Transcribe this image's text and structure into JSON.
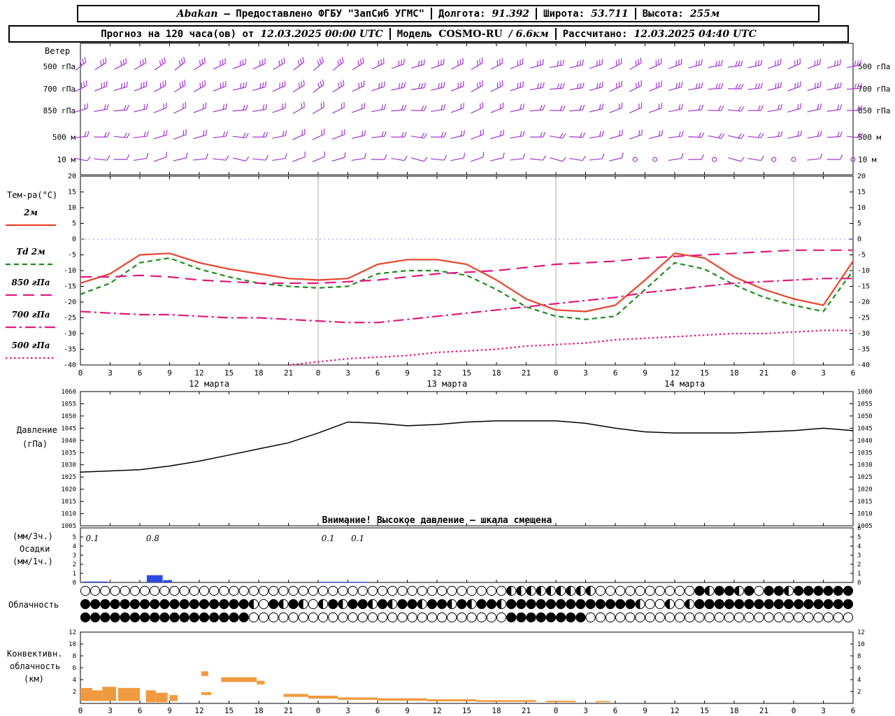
{
  "header1": {
    "station": "Abakan",
    "provider": "— Предоставлено ФГБУ \"ЗапСиб УГМС\"",
    "lon_label": "Долгота:",
    "lon": "91.392",
    "lat_label": "Широта:",
    "lat": "53.711",
    "alt_label": "Высота:",
    "alt": "255м"
  },
  "header2": {
    "forecast_label": "Прогноз на 120 часа(ов) от",
    "forecast_time": "12.03.2025 00:00 UTC",
    "model_label": "Модель",
    "model_name": "COSMO-RU",
    "model_res": "/ 6.6км",
    "calc_label": "Рассчитано:",
    "calc_time": "12.03.2025 04:40 UTC"
  },
  "panels": {
    "wind": {
      "title": "Ветер"
    },
    "temperature": {
      "title": "Тем-ра(°C)"
    },
    "pressure": {
      "title_line1": "Давление",
      "title_line2": "(гПа)"
    },
    "precipitation": {
      "label_line1": "(мм/3ч.)",
      "label_line2": "Осадки",
      "label_line3": "(мм/1ч.)"
    },
    "cloudiness": {
      "title": "Облачность"
    },
    "convective": {
      "label_line1": "Конвективн.",
      "label_line2": "облачность",
      "label_line3": "(км)"
    }
  },
  "x_axis": {
    "hour_labels": [
      "0",
      "3",
      "6",
      "9",
      "12",
      "15",
      "18",
      "21",
      "0",
      "3",
      "6",
      "9",
      "12",
      "15",
      "18",
      "21",
      "0",
      "3",
      "6",
      "9",
      "12",
      "15",
      "18",
      "21",
      "0",
      "3",
      "6"
    ],
    "date_labels": [
      "12 марта",
      "13 марта",
      "14 марта"
    ]
  },
  "chart_data": [
    {
      "type": "line",
      "id": "temperature",
      "title": "Тем-ра(°C)",
      "ylim": [
        -40,
        20
      ],
      "ytick": 5,
      "x_hours": [
        0,
        3,
        6,
        9,
        12,
        15,
        18,
        21,
        24,
        27,
        30,
        33,
        36,
        39,
        42,
        45,
        48,
        51,
        54,
        57,
        60,
        63,
        66,
        69,
        72,
        75,
        78
      ],
      "series": [
        {
          "name": "2м",
          "color": "#e8442c",
          "dash": "solid",
          "values": [
            -14,
            -11,
            -5,
            -4.5,
            -7.5,
            -9.5,
            -11,
            -12.5,
            -13,
            -12.5,
            -8,
            -6.5,
            -6.5,
            -8,
            -13,
            -19,
            -22.5,
            -23,
            -21,
            -13,
            -4.5,
            -6,
            -12,
            -16,
            -19,
            -21,
            -7
          ]
        },
        {
          "name": "Td 2м",
          "color": "#1e8c1e",
          "dash": "dashed",
          "values": [
            -17.5,
            -14,
            -7.5,
            -6,
            -9.5,
            -12,
            -14,
            -15,
            -15.5,
            -15,
            -11,
            -10,
            -10,
            -11.5,
            -16,
            -21.5,
            -24.5,
            -25.5,
            -24.5,
            -16,
            -7.5,
            -9.5,
            -14.5,
            -18.5,
            -21,
            -23,
            -10
          ]
        },
        {
          "name": "850 гПа",
          "color": "#e0187f",
          "dash": "longdash",
          "values": [
            -12,
            -12,
            -11.5,
            -12,
            -13,
            -13.5,
            -14,
            -14,
            -14,
            -13.5,
            -13,
            -12,
            -11,
            -10.5,
            -10,
            -9,
            -8,
            -7.5,
            -7,
            -6,
            -5.5,
            -5,
            -4.5,
            -4,
            -3.5,
            -3.5,
            -3.5
          ]
        },
        {
          "name": "700 гПа",
          "color": "#e0187f",
          "dash": "dashdot",
          "values": [
            -23,
            -23.5,
            -24,
            -24,
            -24.5,
            -25,
            -25,
            -25.5,
            -26,
            -26.5,
            -26.5,
            -25.5,
            -24.5,
            -23.5,
            -22.5,
            -21.5,
            -20.5,
            -19.5,
            -18.5,
            -17,
            -16,
            -15,
            -14,
            -13.5,
            -13,
            -12.5,
            -12.5
          ]
        },
        {
          "name": "500 гПа",
          "color": "#e0187f",
          "dash": "dotted",
          "values": [
            null,
            null,
            null,
            null,
            null,
            null,
            null,
            -40,
            -39,
            -38,
            -37.5,
            -37,
            -36,
            -35.5,
            -35,
            -34,
            -33.5,
            -33,
            -32,
            -31.5,
            -31,
            -30.5,
            -30,
            -30,
            -29.5,
            -29,
            -29
          ]
        }
      ]
    },
    {
      "type": "line",
      "id": "pressure",
      "title": "Давление (гПа)",
      "ylim": [
        1005,
        1060
      ],
      "ytick": 5,
      "warning": "Внимание! Высокое давление — шкала смещена",
      "x_hours": [
        0,
        3,
        6,
        9,
        12,
        15,
        18,
        21,
        24,
        27,
        30,
        33,
        36,
        39,
        42,
        45,
        48,
        51,
        54,
        57,
        60,
        63,
        66,
        69,
        72,
        75,
        78
      ],
      "series": [
        {
          "name": "Давление",
          "color": "#000000",
          "dash": "solid",
          "values": [
            1027,
            1027.5,
            1028,
            1029.5,
            1031.5,
            1034,
            1036.5,
            1039,
            1043,
            1047.5,
            1047,
            1046,
            1046.5,
            1047.5,
            1048,
            1048,
            1048,
            1047,
            1045,
            1043.5,
            1043,
            1043,
            1043,
            1043.5,
            1044,
            1045,
            1044
          ]
        }
      ]
    },
    {
      "type": "bar",
      "id": "precipitation",
      "color": "#2d4ae0",
      "left_ticks": [
        5,
        4,
        3,
        2,
        1,
        0
      ],
      "right_ticks": [
        6,
        5,
        4,
        3,
        2,
        1,
        0
      ],
      "bars": [
        {
          "h": 1.5,
          "w": 2.5,
          "v": 0.1
        },
        {
          "h": 7.5,
          "w": 1.6,
          "v": 0.8
        },
        {
          "h": 8.8,
          "w": 0.9,
          "v": 0.25
        },
        {
          "h": 25.5,
          "w": 3,
          "v": 0.07
        },
        {
          "h": 28,
          "w": 2,
          "v": 0.07
        }
      ],
      "value_labels": [
        {
          "h": 1.2,
          "text": "0.1"
        },
        {
          "h": 7.3,
          "text": "0.8"
        },
        {
          "h": 25,
          "text": "0.1"
        },
        {
          "h": 28,
          "text": "0.1"
        }
      ]
    },
    {
      "type": "symbols",
      "id": "cloudiness",
      "rows": [
        "ooooooooooooooooooooooooooooooooooooooooooohhhhhhhhhoooooooooofhffhfoffhffffff",
        "fffffffffffffffffhofhfhohfhffhfhffhffhfhffhfffffffffffffhoohohffffffffffffffff",
        "fffffffffffffffffooooooooooooooooooooooooooffffffffooooooooooooooooooooooooooo"
      ]
    },
    {
      "type": "area-segments",
      "id": "convective",
      "color": "#f09a40",
      "ylim": [
        0,
        12
      ],
      "ytick": 2,
      "segments": [
        {
          "h0": 0,
          "h1": 1.2,
          "b": 0.4,
          "t": 2.6
        },
        {
          "h0": 1.2,
          "h1": 2.2,
          "b": 0.4,
          "t": 2.2
        },
        {
          "h0": 2.2,
          "h1": 3.6,
          "b": 0.4,
          "t": 2.8
        },
        {
          "h0": 3.8,
          "h1": 6.0,
          "b": 0.4,
          "t": 2.6
        },
        {
          "h0": 6.6,
          "h1": 7.6,
          "b": 0.2,
          "t": 2.2
        },
        {
          "h0": 7.6,
          "h1": 8.8,
          "b": 0.2,
          "t": 1.8
        },
        {
          "h0": 9.0,
          "h1": 9.8,
          "b": 0.4,
          "t": 1.4
        },
        {
          "h0": 12.2,
          "h1": 12.9,
          "b": 4.6,
          "t": 5.4
        },
        {
          "h0": 12.2,
          "h1": 13.2,
          "b": 1.4,
          "t": 1.9
        },
        {
          "h0": 14.2,
          "h1": 17.8,
          "b": 3.6,
          "t": 4.4
        },
        {
          "h0": 17.8,
          "h1": 18.6,
          "b": 3.2,
          "t": 3.8
        },
        {
          "h0": 20.5,
          "h1": 23,
          "b": 1.1,
          "t": 1.6
        },
        {
          "h0": 23,
          "h1": 26,
          "b": 0.8,
          "t": 1.3
        },
        {
          "h0": 26,
          "h1": 30,
          "b": 0.6,
          "t": 1.0
        },
        {
          "h0": 30,
          "h1": 35,
          "b": 0.45,
          "t": 0.85
        },
        {
          "h0": 35,
          "h1": 40,
          "b": 0.35,
          "t": 0.7
        },
        {
          "h0": 40,
          "h1": 46,
          "b": 0.25,
          "t": 0.55
        },
        {
          "h0": 47,
          "h1": 50,
          "b": 0.2,
          "t": 0.45
        },
        {
          "h0": 52,
          "h1": 53.5,
          "b": 0.2,
          "t": 0.4
        }
      ]
    },
    {
      "type": "barbs",
      "id": "wind",
      "color": "#a335cf",
      "hour_step": 2,
      "levels": [
        "500 гПа",
        "700 гПа",
        "850 гПа",
        "500 м",
        "10 м"
      ],
      "barb_ticks": [
        3,
        3,
        2,
        2,
        1
      ],
      "angles": [
        [
          -38,
          -32,
          -27,
          -30,
          -35,
          -38,
          -33,
          -26,
          -21,
          -24,
          -30,
          -37,
          -41,
          -38,
          -33,
          -26,
          -20,
          -16,
          -19,
          -26,
          -31,
          -28,
          -22,
          -16,
          -11,
          -13,
          -19,
          -26,
          -29,
          -25,
          -20,
          -14,
          -9,
          -7,
          -12,
          -18,
          -23,
          -20,
          -15,
          -10
        ],
        [
          -26,
          -21,
          -16,
          -21,
          -29,
          -33,
          -29,
          -21,
          -13,
          -16,
          -23,
          -31,
          -36,
          -31,
          -25,
          -18,
          -12,
          -8,
          -13,
          -21,
          -29,
          -26,
          -18,
          -10,
          -5,
          -8,
          -15,
          -23,
          -26,
          -22,
          -15,
          -9,
          -4,
          0,
          -6,
          -13,
          -19,
          -16,
          -10,
          -4
        ],
        [
          -16,
          -10,
          -5,
          -13,
          -21,
          -26,
          -21,
          -13,
          -5,
          -9,
          -19,
          -29,
          -31,
          -26,
          -19,
          -11,
          -5,
          1,
          -9,
          -19,
          -26,
          -21,
          -13,
          -5,
          1,
          -5,
          -13,
          -21,
          -23,
          -19,
          -11,
          -5,
          1,
          6,
          0,
          -9,
          -16,
          -13,
          -8,
          0
        ],
        [
          -6,
          0,
          6,
          -6,
          -16,
          -21,
          -16,
          -6,
          6,
          0,
          -11,
          -23,
          -26,
          -21,
          -13,
          -6,
          0,
          9,
          0,
          -13,
          -21,
          -16,
          -9,
          0,
          9,
          3,
          -9,
          -16,
          -19,
          -13,
          -6,
          3,
          11,
          13,
          6,
          -6,
          -11,
          -9,
          -3,
          6
        ],
        [
          12,
          6,
          0,
          -9,
          -19,
          -13,
          -6,
          6,
          13,
          6,
          -9,
          -21,
          -23,
          -16,
          -9,
          0,
          9,
          16,
          6,
          -11,
          -19,
          -13,
          -6,
          6,
          16,
          9,
          -6,
          -13,
          null,
          null,
          -9,
          0,
          null,
          16,
          9,
          null,
          null,
          -6,
          0,
          null
        ]
      ]
    }
  ]
}
